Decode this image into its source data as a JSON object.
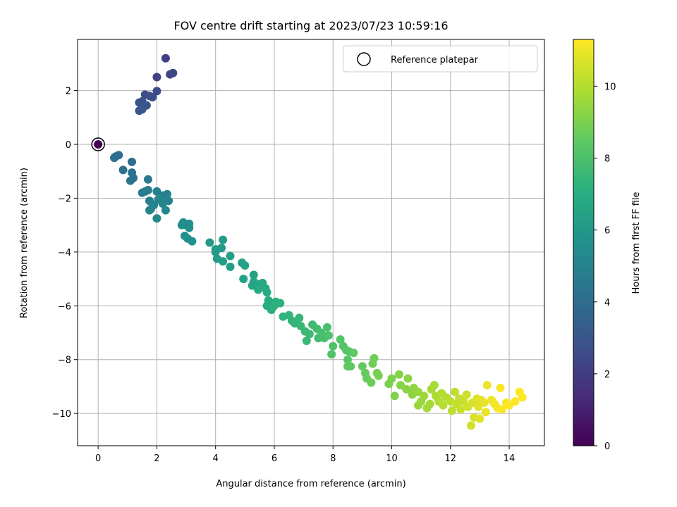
{
  "chart_data": {
    "type": "scatter",
    "title": "FOV centre drift starting at 2023/07/23 10:59:16",
    "xlabel": "Angular distance from reference (arcmin)",
    "ylabel": "Rotation from reference (arcmin)",
    "xlim": [
      -0.7,
      15.2
    ],
    "ylim": [
      -11.2,
      3.9
    ],
    "xticks": [
      0,
      2,
      4,
      6,
      8,
      10,
      12,
      14
    ],
    "yticks": [
      -10,
      -8,
      -6,
      -4,
      -2,
      0,
      2
    ],
    "grid": true,
    "legend": {
      "position": "top-right",
      "entries": [
        "Reference platepar"
      ]
    },
    "colorbar": {
      "label": "Hours from first FF file",
      "colormap": "viridis",
      "range": [
        0,
        11.3
      ],
      "ticks": [
        0,
        2,
        4,
        6,
        8,
        10
      ]
    },
    "reference_point": {
      "x": 0,
      "y": 0
    },
    "points": [
      [
        0,
        0,
        0.0
      ],
      [
        2.3,
        3.2,
        2.1
      ],
      [
        2.0,
        2.5,
        2.2
      ],
      [
        2.45,
        2.6,
        2.3
      ],
      [
        2.55,
        2.65,
        2.35
      ],
      [
        2.0,
        1.98,
        2.6
      ],
      [
        1.85,
        1.75,
        2.7
      ],
      [
        1.6,
        1.85,
        2.65
      ],
      [
        1.75,
        1.8,
        2.7
      ],
      [
        1.4,
        1.55,
        2.8
      ],
      [
        1.5,
        1.6,
        2.85
      ],
      [
        1.65,
        1.45,
        2.9
      ],
      [
        1.55,
        1.4,
        2.95
      ],
      [
        1.4,
        1.25,
        3.0
      ],
      [
        1.5,
        1.3,
        3.05
      ],
      [
        0.6,
        -0.45,
        4.0
      ],
      [
        0.7,
        -0.4,
        4.05
      ],
      [
        0.55,
        -0.5,
        4.1
      ],
      [
        1.15,
        -0.65,
        4.15
      ],
      [
        0.85,
        -0.95,
        4.2
      ],
      [
        1.15,
        -1.05,
        4.25
      ],
      [
        1.2,
        -1.25,
        4.3
      ],
      [
        1.1,
        -1.35,
        4.35
      ],
      [
        1.7,
        -1.3,
        4.6
      ],
      [
        1.5,
        -1.8,
        4.65
      ],
      [
        1.6,
        -1.75,
        4.7
      ],
      [
        1.7,
        -1.7,
        4.75
      ],
      [
        1.75,
        -2.1,
        4.8
      ],
      [
        2.0,
        -1.75,
        4.85
      ],
      [
        2.2,
        -1.9,
        4.9
      ],
      [
        2.35,
        -1.85,
        4.95
      ],
      [
        2.4,
        -2.1,
        5.0
      ],
      [
        2.2,
        -2.2,
        5.05
      ],
      [
        1.9,
        -2.25,
        5.1
      ],
      [
        1.8,
        -2.4,
        5.15
      ],
      [
        1.75,
        -2.45,
        5.0
      ],
      [
        2.3,
        -2.45,
        5.2
      ],
      [
        2.0,
        -2.75,
        5.25
      ],
      [
        2.05,
        -2.05,
        5.1
      ],
      [
        2.9,
        -2.9,
        5.4
      ],
      [
        3.0,
        -3.0,
        5.45
      ],
      [
        3.1,
        -3.1,
        5.5
      ],
      [
        3.1,
        -2.95,
        5.55
      ],
      [
        2.95,
        -3.4,
        5.6
      ],
      [
        3.05,
        -3.5,
        5.65
      ],
      [
        3.2,
        -3.6,
        5.7
      ],
      [
        2.85,
        -3.0,
        5.5
      ],
      [
        3.8,
        -3.65,
        6.0
      ],
      [
        4.0,
        -3.9,
        6.05
      ],
      [
        4.2,
        -3.85,
        6.1
      ],
      [
        4.25,
        -3.55,
        6.15
      ],
      [
        4.0,
        -4.0,
        6.1
      ],
      [
        4.05,
        -4.25,
        6.2
      ],
      [
        4.25,
        -4.35,
        6.25
      ],
      [
        4.5,
        -4.15,
        6.3
      ],
      [
        4.5,
        -4.55,
        6.35
      ],
      [
        4.9,
        -4.4,
        6.4
      ],
      [
        5.0,
        -4.5,
        6.45
      ],
      [
        4.95,
        -5.0,
        6.5
      ],
      [
        5.3,
        -4.85,
        6.55
      ],
      [
        5.3,
        -5.1,
        6.6
      ],
      [
        5.25,
        -5.25,
        6.65
      ],
      [
        5.5,
        -5.2,
        6.7
      ],
      [
        5.6,
        -5.15,
        6.75
      ],
      [
        5.45,
        -5.4,
        6.8
      ],
      [
        5.7,
        -5.35,
        6.85
      ],
      [
        5.75,
        -5.5,
        6.9
      ],
      [
        5.8,
        -5.8,
        6.95
      ],
      [
        5.75,
        -6.0,
        7.0
      ],
      [
        5.9,
        -6.15,
        7.05
      ],
      [
        6.05,
        -5.85,
        7.1
      ],
      [
        6.2,
        -5.9,
        7.15
      ],
      [
        6.0,
        -6.0,
        7.2
      ],
      [
        6.3,
        -6.4,
        7.25
      ],
      [
        6.5,
        -6.35,
        7.3
      ],
      [
        6.6,
        -6.55,
        7.35
      ],
      [
        6.7,
        -6.65,
        7.4
      ],
      [
        6.85,
        -6.45,
        7.45
      ],
      [
        6.9,
        -6.75,
        7.5
      ],
      [
        7.05,
        -6.95,
        7.55
      ],
      [
        7.1,
        -7.3,
        7.6
      ],
      [
        7.2,
        -7.05,
        7.65
      ],
      [
        7.3,
        -6.7,
        7.7
      ],
      [
        7.45,
        -6.85,
        7.75
      ],
      [
        7.5,
        -7.2,
        7.8
      ],
      [
        7.6,
        -7.0,
        7.85
      ],
      [
        7.7,
        -7.2,
        7.9
      ],
      [
        7.8,
        -6.8,
        7.95
      ],
      [
        7.85,
        -7.1,
        8.0
      ],
      [
        8.0,
        -7.5,
        8.05
      ],
      [
        7.95,
        -7.8,
        8.1
      ],
      [
        8.25,
        -7.25,
        8.15
      ],
      [
        8.35,
        -7.5,
        8.2
      ],
      [
        8.45,
        -7.65,
        8.25
      ],
      [
        8.5,
        -8.0,
        8.3
      ],
      [
        8.55,
        -7.7,
        8.35
      ],
      [
        8.6,
        -8.25,
        8.4
      ],
      [
        8.5,
        -8.25,
        8.45
      ],
      [
        8.7,
        -7.75,
        8.5
      ],
      [
        9.0,
        -8.25,
        8.55
      ],
      [
        9.1,
        -8.5,
        8.6
      ],
      [
        9.15,
        -8.7,
        8.65
      ],
      [
        9.3,
        -8.85,
        8.7
      ],
      [
        9.35,
        -8.15,
        8.75
      ],
      [
        9.4,
        -7.95,
        8.8
      ],
      [
        9.5,
        -8.5,
        8.85
      ],
      [
        9.55,
        -8.6,
        8.9
      ],
      [
        9.9,
        -8.9,
        9.0
      ],
      [
        10.0,
        -8.7,
        9.05
      ],
      [
        10.1,
        -9.35,
        9.1
      ],
      [
        10.25,
        -8.55,
        9.15
      ],
      [
        10.3,
        -8.95,
        9.2
      ],
      [
        10.5,
        -9.1,
        9.25
      ],
      [
        10.55,
        -8.7,
        9.3
      ],
      [
        10.7,
        -9.3,
        9.35
      ],
      [
        10.75,
        -9.05,
        9.4
      ],
      [
        10.9,
        -9.2,
        9.45
      ],
      [
        10.9,
        -9.7,
        9.5
      ],
      [
        11.0,
        -9.55,
        9.55
      ],
      [
        11.1,
        -9.35,
        9.6
      ],
      [
        11.2,
        -9.8,
        9.65
      ],
      [
        11.3,
        -9.65,
        9.7
      ],
      [
        11.35,
        -9.1,
        9.75
      ],
      [
        11.45,
        -8.95,
        9.8
      ],
      [
        11.5,
        -9.35,
        9.85
      ],
      [
        11.6,
        -9.55,
        9.9
      ],
      [
        11.7,
        -9.25,
        9.95
      ],
      [
        11.75,
        -9.7,
        10.0
      ],
      [
        11.85,
        -9.4,
        10.05
      ],
      [
        12.0,
        -9.55,
        10.1
      ],
      [
        12.05,
        -9.9,
        10.15
      ],
      [
        12.15,
        -9.2,
        10.2
      ],
      [
        12.2,
        -9.65,
        10.25
      ],
      [
        12.3,
        -9.45,
        10.3
      ],
      [
        12.35,
        -9.85,
        10.35
      ],
      [
        12.45,
        -9.55,
        10.4
      ],
      [
        12.55,
        -9.3,
        10.45
      ],
      [
        12.6,
        -9.75,
        10.5
      ],
      [
        12.7,
        -10.45,
        10.55
      ],
      [
        12.75,
        -9.6,
        10.6
      ],
      [
        12.8,
        -10.15,
        10.65
      ],
      [
        12.9,
        -9.45,
        10.7
      ],
      [
        12.95,
        -9.75,
        10.75
      ],
      [
        13.0,
        -10.2,
        10.8
      ],
      [
        13.05,
        -9.5,
        10.85
      ],
      [
        13.15,
        -9.6,
        10.9
      ],
      [
        13.2,
        -9.95,
        10.95
      ],
      [
        13.25,
        -8.95,
        11.0
      ],
      [
        13.4,
        -9.5,
        11.05
      ],
      [
        13.5,
        -9.65,
        11.1
      ],
      [
        13.6,
        -9.8,
        11.15
      ],
      [
        13.7,
        -9.05,
        11.2
      ],
      [
        13.75,
        -9.85,
        11.25
      ],
      [
        13.9,
        -9.6,
        11.2
      ],
      [
        14.0,
        -9.7,
        11.25
      ],
      [
        14.2,
        -9.55,
        11.25
      ],
      [
        14.35,
        -9.2,
        11.3
      ],
      [
        14.45,
        -9.4,
        11.3
      ]
    ]
  }
}
